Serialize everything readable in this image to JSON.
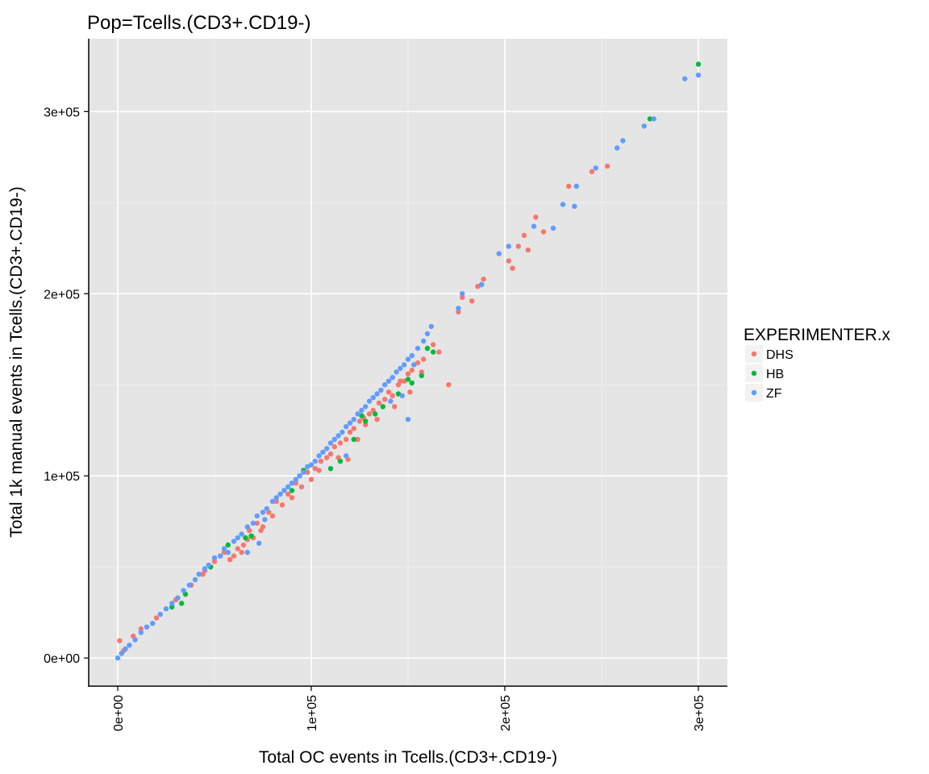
{
  "chart_data": {
    "type": "scatter",
    "title": "Pop=Tcells.(CD3+.CD19-)",
    "xlabel": "Total OC events in Tcells.(CD3+.CD19-)",
    "ylabel": "Total 1k manual events in Tcells.(CD3+.CD19-)",
    "xlim": [
      -15000,
      315000
    ],
    "ylim": [
      -15000,
      340000
    ],
    "x_ticks": [
      {
        "value": 0,
        "label": "0e+00"
      },
      {
        "value": 100000,
        "label": "1e+05"
      },
      {
        "value": 200000,
        "label": "2e+05"
      },
      {
        "value": 300000,
        "label": "3e+05"
      }
    ],
    "y_ticks": [
      {
        "value": 0,
        "label": "0e+00"
      },
      {
        "value": 100000,
        "label": "1e+05"
      },
      {
        "value": 200000,
        "label": "2e+05"
      },
      {
        "value": 300000,
        "label": "3e+05"
      }
    ],
    "grid": true,
    "legend": {
      "title": "EXPERIMENTER.x",
      "placement": "right"
    },
    "series": [
      {
        "name": "DHS",
        "color": "#F8766D",
        "points": [
          [
            1000,
            9500
          ],
          [
            3000,
            4000
          ],
          [
            8000,
            12000
          ],
          [
            12000,
            16000
          ],
          [
            20000,
            22000
          ],
          [
            30000,
            32000
          ],
          [
            38000,
            40000
          ],
          [
            45000,
            48000
          ],
          [
            50000,
            53000
          ],
          [
            55000,
            58000
          ],
          [
            58000,
            54000
          ],
          [
            62000,
            60000
          ],
          [
            65000,
            62000
          ],
          [
            67000,
            65000
          ],
          [
            68000,
            70000
          ],
          [
            72000,
            74000
          ],
          [
            75000,
            72000
          ],
          [
            78000,
            80000
          ],
          [
            80000,
            78000
          ],
          [
            82000,
            86000
          ],
          [
            85000,
            84000
          ],
          [
            88000,
            90000
          ],
          [
            90000,
            88000
          ],
          [
            92000,
            96000
          ],
          [
            95000,
            94000
          ],
          [
            98000,
            102000
          ],
          [
            100000,
            98000
          ],
          [
            102000,
            104000
          ],
          [
            105000,
            108000
          ],
          [
            108000,
            110000
          ],
          [
            110000,
            112000
          ],
          [
            112000,
            116000
          ],
          [
            114000,
            110000
          ],
          [
            115000,
            118000
          ],
          [
            118000,
            120000
          ],
          [
            120000,
            124000
          ],
          [
            122000,
            126000
          ],
          [
            125000,
            130000
          ],
          [
            128000,
            128000
          ],
          [
            130000,
            134000
          ],
          [
            132000,
            136000
          ],
          [
            135000,
            140000
          ],
          [
            138000,
            142000
          ],
          [
            140000,
            146000
          ],
          [
            142000,
            144000
          ],
          [
            145000,
            150000
          ],
          [
            148000,
            152000
          ],
          [
            150000,
            156000
          ],
          [
            152000,
            158000
          ],
          [
            155000,
            162000
          ],
          [
            158000,
            164000
          ],
          [
            160000,
            170000
          ],
          [
            163000,
            172000
          ],
          [
            166000,
            168000
          ],
          [
            171000,
            150000
          ],
          [
            176000,
            190000
          ],
          [
            178000,
            198000
          ],
          [
            183000,
            196000
          ],
          [
            186000,
            204000
          ],
          [
            189000,
            208000
          ],
          [
            202000,
            218000
          ],
          [
            204000,
            214000
          ],
          [
            207000,
            226000
          ],
          [
            210000,
            232000
          ],
          [
            212000,
            224000
          ],
          [
            216000,
            242000
          ],
          [
            220000,
            234000
          ],
          [
            233000,
            259000
          ],
          [
            245000,
            267000
          ],
          [
            253000,
            270000
          ],
          [
            94000,
            100000
          ],
          [
            104000,
            103000
          ],
          [
            119000,
            109000
          ],
          [
            124000,
            120000
          ],
          [
            127000,
            132000
          ],
          [
            134000,
            131000
          ],
          [
            143000,
            138000
          ],
          [
            146000,
            152000
          ],
          [
            151000,
            146000
          ],
          [
            157000,
            157000
          ],
          [
            60000,
            56000
          ],
          [
            64000,
            58000
          ],
          [
            70000,
            66000
          ],
          [
            74000,
            70000
          ],
          [
            44000,
            46000
          ]
        ]
      },
      {
        "name": "HB",
        "color": "#00BA38",
        "points": [
          [
            28000,
            28000
          ],
          [
            33000,
            30000
          ],
          [
            35000,
            35000
          ],
          [
            48000,
            50000
          ],
          [
            57000,
            62000
          ],
          [
            66000,
            66000
          ],
          [
            69000,
            67000
          ],
          [
            90000,
            92000
          ],
          [
            96000,
            103000
          ],
          [
            110000,
            104000
          ],
          [
            115000,
            108000
          ],
          [
            122000,
            120000
          ],
          [
            126000,
            133000
          ],
          [
            128000,
            130000
          ],
          [
            133000,
            134000
          ],
          [
            137000,
            138000
          ],
          [
            145000,
            145000
          ],
          [
            150000,
            153000
          ],
          [
            152000,
            151000
          ],
          [
            157000,
            155000
          ],
          [
            160000,
            170000
          ],
          [
            163000,
            168000
          ],
          [
            188000,
            205000
          ],
          [
            275000,
            296000
          ],
          [
            300000,
            326000
          ]
        ]
      },
      {
        "name": "ZF",
        "color": "#619CFF",
        "points": [
          [
            0,
            0
          ],
          [
            2000,
            2500
          ],
          [
            4000,
            5000
          ],
          [
            6000,
            7000
          ],
          [
            9000,
            10000
          ],
          [
            12000,
            14000
          ],
          [
            15000,
            17000
          ],
          [
            18000,
            19000
          ],
          [
            22000,
            24000
          ],
          [
            25000,
            27000
          ],
          [
            28000,
            30000
          ],
          [
            31000,
            33000
          ],
          [
            34000,
            37000
          ],
          [
            37000,
            40000
          ],
          [
            40000,
            43000
          ],
          [
            42000,
            46000
          ],
          [
            45000,
            49000
          ],
          [
            47000,
            51000
          ],
          [
            50000,
            55000
          ],
          [
            53000,
            56000
          ],
          [
            55000,
            60000
          ],
          [
            57000,
            58000
          ],
          [
            60000,
            64000
          ],
          [
            62000,
            66000
          ],
          [
            64000,
            68000
          ],
          [
            67000,
            72000
          ],
          [
            70000,
            74000
          ],
          [
            72000,
            78000
          ],
          [
            75000,
            80000
          ],
          [
            77000,
            82000
          ],
          [
            80000,
            86000
          ],
          [
            82000,
            88000
          ],
          [
            84000,
            90000
          ],
          [
            86000,
            92000
          ],
          [
            88000,
            94000
          ],
          [
            90000,
            96000
          ],
          [
            92000,
            98000
          ],
          [
            94000,
            100000
          ],
          [
            96000,
            102000
          ],
          [
            98000,
            105000
          ],
          [
            100000,
            106000
          ],
          [
            102000,
            108000
          ],
          [
            104000,
            111000
          ],
          [
            106000,
            113000
          ],
          [
            108000,
            115000
          ],
          [
            110000,
            118000
          ],
          [
            112000,
            120000
          ],
          [
            114000,
            122000
          ],
          [
            116000,
            124000
          ],
          [
            118000,
            127000
          ],
          [
            120000,
            129000
          ],
          [
            122000,
            131000
          ],
          [
            124000,
            134000
          ],
          [
            126000,
            136000
          ],
          [
            128000,
            138000
          ],
          [
            130000,
            141000
          ],
          [
            132000,
            143000
          ],
          [
            134000,
            145000
          ],
          [
            136000,
            147000
          ],
          [
            138000,
            150000
          ],
          [
            140000,
            152000
          ],
          [
            142000,
            154000
          ],
          [
            144000,
            157000
          ],
          [
            146000,
            159000
          ],
          [
            148000,
            161000
          ],
          [
            150000,
            164000
          ],
          [
            152000,
            166000
          ],
          [
            155000,
            170000
          ],
          [
            158000,
            174000
          ],
          [
            160000,
            178000
          ],
          [
            162000,
            182000
          ],
          [
            150000,
            131000
          ],
          [
            67000,
            58000
          ],
          [
            73000,
            63000
          ],
          [
            76000,
            76000
          ],
          [
            118000,
            111000
          ],
          [
            141000,
            141000
          ],
          [
            147000,
            144000
          ],
          [
            153000,
            161000
          ],
          [
            176000,
            192000
          ],
          [
            178000,
            200000
          ],
          [
            188000,
            205000
          ],
          [
            197000,
            222000
          ],
          [
            202000,
            226000
          ],
          [
            215000,
            237000
          ],
          [
            225000,
            236000
          ],
          [
            230000,
            249000
          ],
          [
            236000,
            248000
          ],
          [
            237000,
            259000
          ],
          [
            247000,
            269000
          ],
          [
            258000,
            280000
          ],
          [
            261000,
            284000
          ],
          [
            272000,
            292000
          ],
          [
            277000,
            296000
          ],
          [
            293000,
            318000
          ],
          [
            300000,
            320000
          ]
        ]
      }
    ]
  }
}
